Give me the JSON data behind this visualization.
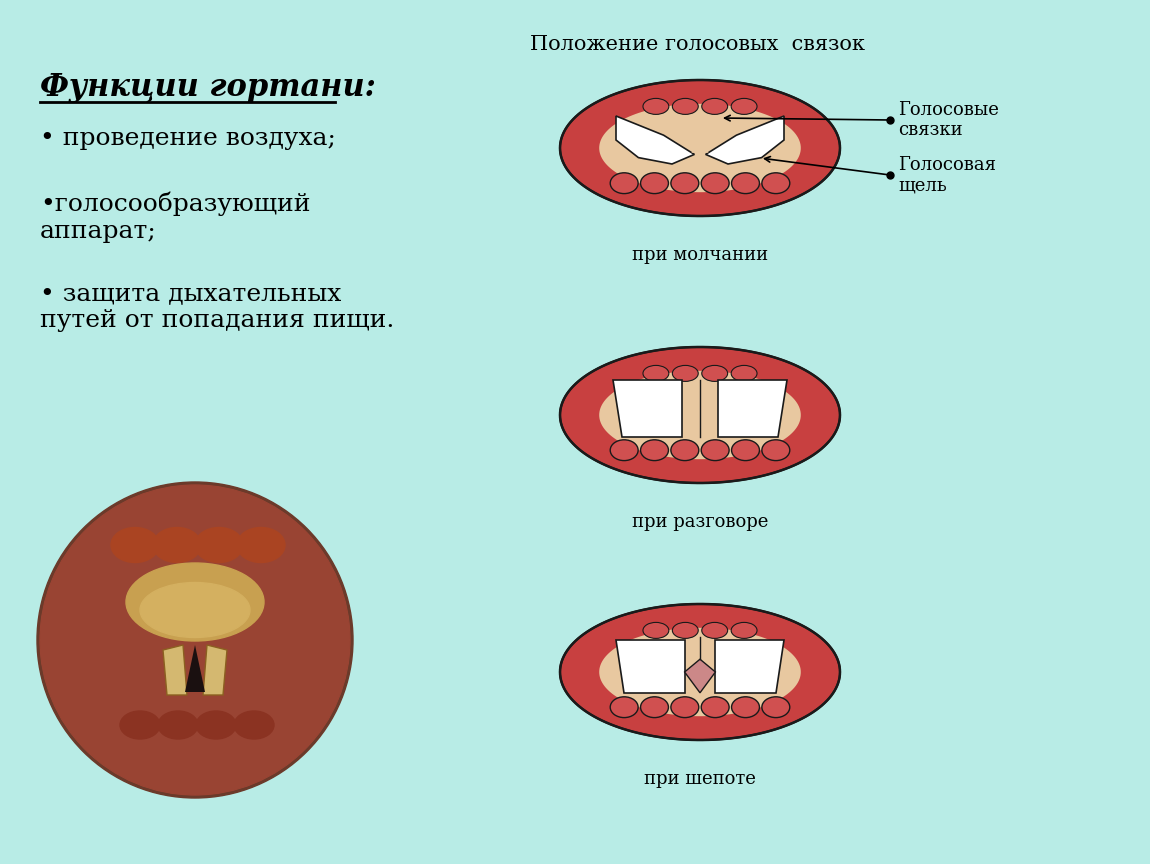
{
  "bg_color": "#b8ece6",
  "title_left": "Функции гортани:",
  "bullets": [
    "• проведение воздуха;",
    "•голосообразующий\nаппарат;",
    "• защита дыхательных\nпутей от попадания пищи."
  ],
  "right_title": "Положение голосовых  связок",
  "diagram_labels": [
    "при молчании",
    "при разговоре",
    "при шепоте"
  ],
  "label1": "Голосовые\nсвязки",
  "label2": "Голосовая\nщель",
  "red_outer": "#C84040",
  "red_mid": "#D05050",
  "flesh": "#E8C8A0",
  "white": "#FFFFFF",
  "outline": "#1A1A1A",
  "pink_gap": "#D08080",
  "font_size_title": 22,
  "font_size_bullets": 18,
  "font_size_labels": 13,
  "font_size_right_title": 15,
  "font_size_diagram_labels": 13
}
